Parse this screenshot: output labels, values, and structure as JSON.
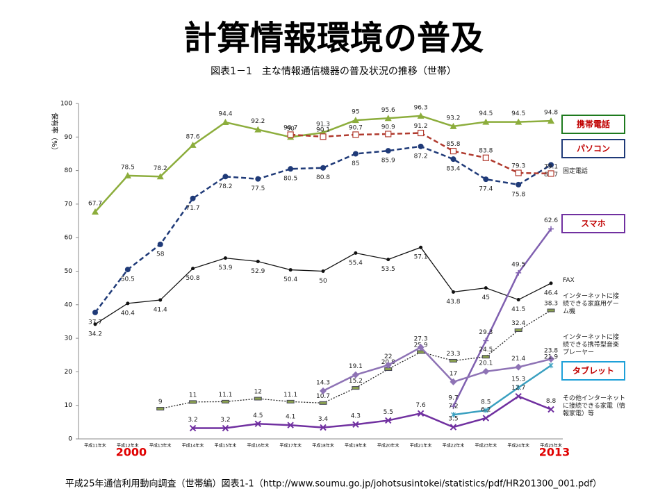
{
  "chart_data": {
    "type": "line",
    "title": "計算情報環境の普及",
    "subtitle": "図表1－1　主な情報通信機器の普及状況の推移（世帯）",
    "y_label": "保有率（%）",
    "source": "平成25年通信利用動向調査（世帯編）図表1-1（http://www.soumu.go.jp/johotsusintokei/statistics/pdf/HR201300_001.pdf）",
    "categories": [
      "平成11年末",
      "平成12年末",
      "平成13年末",
      "平成14年末",
      "平成15年末",
      "平成16年末",
      "平成17年末",
      "平成18年末",
      "平成19年末",
      "平成20年末",
      "平成21年末",
      "平成22年末",
      "平成23年末",
      "平成24年末",
      "平成25年末"
    ],
    "annotations": [
      {
        "text": "2000",
        "index": 1
      },
      {
        "text": "2013",
        "index": 14
      }
    ],
    "ylim": [
      0,
      100
    ],
    "yticks": [
      0,
      10,
      20,
      30,
      40,
      50,
      60,
      70,
      80,
      90,
      100
    ],
    "series": [
      {
        "name": "携帯電話",
        "color": "#8cad3c",
        "line_style": "solid",
        "marker": "triangle",
        "legend_box": "#1e7a1e",
        "values": [
          67.7,
          78.5,
          78.2,
          87.6,
          94.4,
          92.2,
          90.0,
          91.3,
          95.0,
          95.6,
          96.3,
          93.2,
          94.5,
          94.5,
          94.8
        ]
      },
      {
        "name": "パソコン",
        "color": "#1f3a78",
        "line_style": "dashed",
        "marker": "circle",
        "legend_box": "#1f3a78",
        "values": [
          37.7,
          50.5,
          58.0,
          71.7,
          78.2,
          77.5,
          80.5,
          80.8,
          85.0,
          85.9,
          87.2,
          83.4,
          77.4,
          75.8,
          81.7
        ]
      },
      {
        "name": "固定電話",
        "color": "#b03a2e",
        "line_style": "dashed",
        "marker": "square",
        "values": [
          null,
          null,
          null,
          null,
          null,
          null,
          90.7,
          90.1,
          90.7,
          90.9,
          91.2,
          85.8,
          83.8,
          79.3,
          79.1
        ]
      },
      {
        "name": "FAX",
        "color": "#111111",
        "line_style": "solid",
        "marker": "dot",
        "values": [
          34.2,
          40.4,
          41.4,
          50.8,
          53.9,
          52.9,
          50.4,
          50.0,
          55.4,
          53.5,
          57.1,
          43.8,
          45.0,
          41.5,
          46.4
        ]
      },
      {
        "name": "スマホ",
        "color": "#8060b0",
        "line_style": "solid",
        "marker": "plus",
        "legend_box": "#7030a0",
        "values": [
          null,
          null,
          null,
          null,
          null,
          null,
          null,
          null,
          null,
          null,
          null,
          9.7,
          29.3,
          49.5,
          62.6
        ]
      },
      {
        "name": "インターネットに接続できる家庭用ゲーム機",
        "color": "#222222",
        "line_style": "dotted",
        "marker": "bar",
        "marker_color": "#8aa050",
        "values": [
          null,
          null,
          9.0,
          11.0,
          11.1,
          12.0,
          11.1,
          10.7,
          15.2,
          20.8,
          25.9,
          23.3,
          24.5,
          32.4,
          38.3
        ]
      },
      {
        "name": "インターネットに接続できる携帯型音楽プレーヤー",
        "color": "#8e73b5",
        "line_style": "solid",
        "marker": "diamond",
        "values": [
          null,
          null,
          null,
          null,
          null,
          null,
          null,
          14.3,
          19.1,
          22.0,
          27.3,
          17.0,
          20.1,
          21.4,
          23.8
        ]
      },
      {
        "name": "タブレット",
        "color": "#3aa0c0",
        "line_style": "solid",
        "marker": "star",
        "legend_box": "#1ea0d8",
        "values": [
          null,
          null,
          null,
          null,
          null,
          null,
          null,
          null,
          null,
          null,
          null,
          7.2,
          8.5,
          15.3,
          21.9
        ]
      },
      {
        "name": "その他インターネットに接続できる家電（情報家電）等",
        "color": "#7030a0",
        "line_style": "solid",
        "marker": "cross",
        "values": [
          null,
          null,
          null,
          3.2,
          3.2,
          4.5,
          4.1,
          3.4,
          4.3,
          5.5,
          7.6,
          3.5,
          6.2,
          12.7,
          8.8
        ]
      }
    ]
  }
}
